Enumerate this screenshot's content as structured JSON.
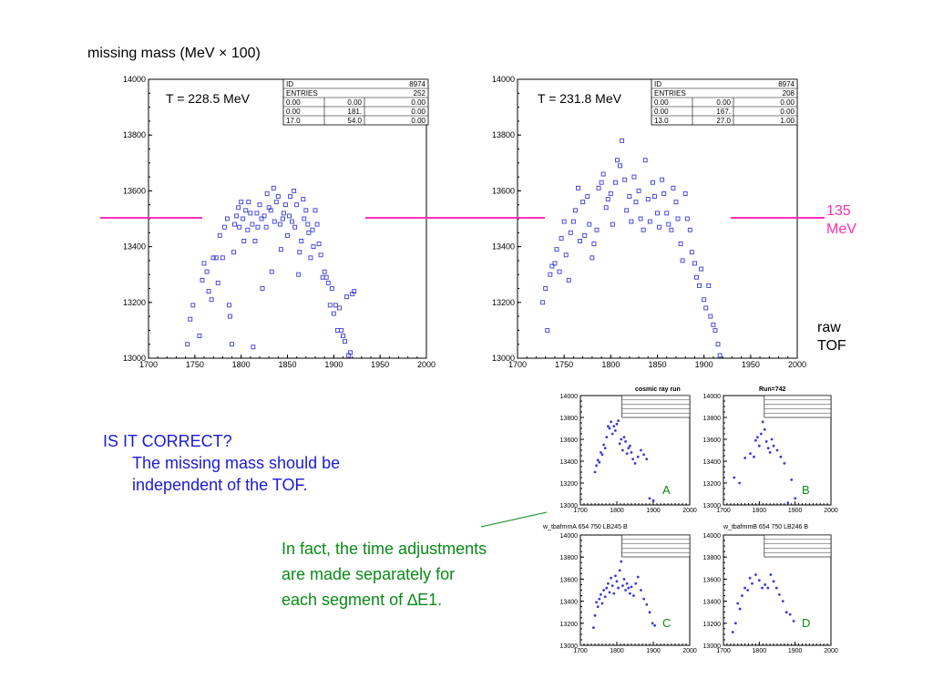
{
  "heading": "missing mass (MeV × 100)",
  "colors": {
    "points": "#3a3ad8",
    "line135": "#ff2fb4",
    "question": "#1a1ad6",
    "note": "#0a8a16",
    "pointer": "#0a8a16"
  },
  "labels": {
    "mev135": [
      "135",
      "MeV"
    ],
    "raw_tof": [
      "raw",
      "TOF"
    ],
    "question_title": "IS  IT  CORRECT?",
    "question_lines": [
      "The missing mass should be",
      "independent of the TOF."
    ],
    "note_lines": [
      "In fact, the time adjustments",
      "are made separately for",
      "each segment of ∆E1."
    ]
  },
  "chart_data": [
    {
      "type": "scatter",
      "annotation": "T = 228.5 MeV",
      "xlim": [
        1700,
        2000
      ],
      "ylim": [
        13000,
        14000
      ],
      "xticks": [
        "1700",
        "1750",
        "1800",
        "1850",
        "1900",
        "1950",
        "2000"
      ],
      "yticks": [
        "13000",
        "13200",
        "13400",
        "13600",
        "13800",
        "14000"
      ],
      "stats": [
        [
          "ID",
          "",
          "8974"
        ],
        [
          "ENTRIES",
          "",
          "252"
        ],
        [
          "0.00",
          "0.00",
          "0.00"
        ],
        [
          "0.00",
          "181.",
          "0.00"
        ],
        [
          "17.0",
          "54.0",
          "0.00"
        ]
      ],
      "reference_line_y": 13500,
      "points": [
        [
          1742,
          13050
        ],
        [
          1745,
          13140
        ],
        [
          1748,
          13190
        ],
        [
          1755,
          13080
        ],
        [
          1758,
          13280
        ],
        [
          1760,
          13340
        ],
        [
          1763,
          13310
        ],
        [
          1765,
          13240
        ],
        [
          1768,
          13210
        ],
        [
          1770,
          13360
        ],
        [
          1773,
          13360
        ],
        [
          1775,
          13270
        ],
        [
          1777,
          13440
        ],
        [
          1780,
          13360
        ],
        [
          1782,
          13470
        ],
        [
          1785,
          13500
        ],
        [
          1787,
          13190
        ],
        [
          1788,
          13150
        ],
        [
          1790,
          13050
        ],
        [
          1792,
          13380
        ],
        [
          1793,
          13480
        ],
        [
          1795,
          13510
        ],
        [
          1797,
          13540
        ],
        [
          1798,
          13470
        ],
        [
          1800,
          13560
        ],
        [
          1802,
          13500
        ],
        [
          1803,
          13420
        ],
        [
          1805,
          13530
        ],
        [
          1807,
          13460
        ],
        [
          1808,
          13560
        ],
        [
          1810,
          13520
        ],
        [
          1812,
          13480
        ],
        [
          1813,
          13040
        ],
        [
          1815,
          13420
        ],
        [
          1817,
          13520
        ],
        [
          1818,
          13470
        ],
        [
          1820,
          13550
        ],
        [
          1822,
          13500
        ],
        [
          1823,
          13250
        ],
        [
          1825,
          13510
        ],
        [
          1827,
          13470
        ],
        [
          1828,
          13590
        ],
        [
          1830,
          13540
        ],
        [
          1832,
          13530
        ],
        [
          1833,
          13310
        ],
        [
          1835,
          13610
        ],
        [
          1836,
          13490
        ],
        [
          1838,
          13560
        ],
        [
          1840,
          13580
        ],
        [
          1842,
          13480
        ],
        [
          1843,
          13390
        ],
        [
          1845,
          13500
        ],
        [
          1846,
          13520
        ],
        [
          1848,
          13550
        ],
        [
          1850,
          13440
        ],
        [
          1852,
          13510
        ],
        [
          1853,
          13580
        ],
        [
          1855,
          13490
        ],
        [
          1857,
          13600
        ],
        [
          1858,
          13470
        ],
        [
          1860,
          13550
        ],
        [
          1862,
          13300
        ],
        [
          1863,
          13380
        ],
        [
          1865,
          13420
        ],
        [
          1867,
          13570
        ],
        [
          1868,
          13500
        ],
        [
          1870,
          13530
        ],
        [
          1872,
          13480
        ],
        [
          1873,
          13450
        ],
        [
          1875,
          13360
        ],
        [
          1877,
          13460
        ],
        [
          1878,
          13400
        ],
        [
          1880,
          13530
        ],
        [
          1882,
          13480
        ],
        [
          1884,
          13410
        ],
        [
          1886,
          13370
        ],
        [
          1888,
          13290
        ],
        [
          1890,
          13310
        ],
        [
          1892,
          13290
        ],
        [
          1894,
          13270
        ],
        [
          1896,
          13190
        ],
        [
          1898,
          13250
        ],
        [
          1900,
          13160
        ],
        [
          1902,
          13190
        ],
        [
          1904,
          13100
        ],
        [
          1906,
          13180
        ],
        [
          1908,
          13100
        ],
        [
          1910,
          13080
        ],
        [
          1912,
          13060
        ],
        [
          1914,
          13220
        ],
        [
          1916,
          13010
        ],
        [
          1918,
          13020
        ],
        [
          1920,
          13230
        ],
        [
          1922,
          13240
        ]
      ]
    },
    {
      "type": "scatter",
      "annotation": "T = 231.8 MeV",
      "xlim": [
        1700,
        2000
      ],
      "ylim": [
        13000,
        14000
      ],
      "xticks": [
        "1700",
        "1750",
        "1800",
        "1850",
        "1900",
        "1950",
        "2000"
      ],
      "yticks": [
        "13000",
        "13200",
        "13400",
        "13600",
        "13800",
        "14000"
      ],
      "stats": [
        [
          "ID",
          "",
          "8974"
        ],
        [
          "ENTRIES",
          "",
          "208"
        ],
        [
          "0.00",
          "0.00",
          "0.00"
        ],
        [
          "0.00",
          "167.",
          "0.00"
        ],
        [
          "13.0",
          "27.0",
          "1.00"
        ]
      ],
      "reference_line_y": 13500,
      "points": [
        [
          1727,
          13200
        ],
        [
          1730,
          13250
        ],
        [
          1732,
          13100
        ],
        [
          1735,
          13300
        ],
        [
          1737,
          13330
        ],
        [
          1740,
          13340
        ],
        [
          1742,
          13390
        ],
        [
          1745,
          13310
        ],
        [
          1747,
          13430
        ],
        [
          1750,
          13490
        ],
        [
          1752,
          13370
        ],
        [
          1755,
          13280
        ],
        [
          1757,
          13450
        ],
        [
          1760,
          13490
        ],
        [
          1762,
          13530
        ],
        [
          1765,
          13610
        ],
        [
          1767,
          13420
        ],
        [
          1770,
          13560
        ],
        [
          1772,
          13440
        ],
        [
          1775,
          13580
        ],
        [
          1777,
          13480
        ],
        [
          1780,
          13360
        ],
        [
          1782,
          13410
        ],
        [
          1785,
          13460
        ],
        [
          1787,
          13610
        ],
        [
          1790,
          13630
        ],
        [
          1792,
          13660
        ],
        [
          1795,
          13540
        ],
        [
          1797,
          13570
        ],
        [
          1800,
          13590
        ],
        [
          1802,
          13480
        ],
        [
          1805,
          13630
        ],
        [
          1807,
          13710
        ],
        [
          1810,
          13690
        ],
        [
          1812,
          13780
        ],
        [
          1815,
          13640
        ],
        [
          1817,
          13530
        ],
        [
          1820,
          13580
        ],
        [
          1822,
          13490
        ],
        [
          1825,
          13650
        ],
        [
          1827,
          13560
        ],
        [
          1830,
          13600
        ],
        [
          1832,
          13500
        ],
        [
          1835,
          13460
        ],
        [
          1837,
          13710
        ],
        [
          1840,
          13570
        ],
        [
          1842,
          13490
        ],
        [
          1845,
          13630
        ],
        [
          1847,
          13580
        ],
        [
          1850,
          13520
        ],
        [
          1852,
          13470
        ],
        [
          1855,
          13640
        ],
        [
          1857,
          13590
        ],
        [
          1860,
          13520
        ],
        [
          1862,
          13480
        ],
        [
          1865,
          13460
        ],
        [
          1867,
          13610
        ],
        [
          1870,
          13560
        ],
        [
          1872,
          13500
        ],
        [
          1875,
          13410
        ],
        [
          1877,
          13350
        ],
        [
          1880,
          13590
        ],
        [
          1882,
          13500
        ],
        [
          1885,
          13460
        ],
        [
          1887,
          13380
        ],
        [
          1890,
          13340
        ],
        [
          1892,
          13290
        ],
        [
          1895,
          13260
        ],
        [
          1897,
          13320
        ],
        [
          1900,
          13210
        ],
        [
          1902,
          13180
        ],
        [
          1905,
          13260
        ],
        [
          1907,
          13150
        ],
        [
          1910,
          13120
        ],
        [
          1912,
          13100
        ],
        [
          1915,
          13050
        ],
        [
          1917,
          13010
        ]
      ]
    },
    {
      "type": "scatter",
      "annotation": "A",
      "header": "cosmic ray run",
      "xlim": [
        1700,
        2000
      ],
      "ylim": [
        13000,
        14000
      ],
      "xticks": [
        "1700",
        "1800",
        "1900",
        "2000"
      ],
      "yticks": [
        "13000",
        "13200",
        "13400",
        "13600",
        "13800",
        "14000"
      ],
      "points": [
        [
          1740,
          13300
        ],
        [
          1744,
          13360
        ],
        [
          1748,
          13410
        ],
        [
          1752,
          13390
        ],
        [
          1756,
          13480
        ],
        [
          1760,
          13460
        ],
        [
          1764,
          13550
        ],
        [
          1768,
          13520
        ],
        [
          1772,
          13620
        ],
        [
          1776,
          13720
        ],
        [
          1780,
          13700
        ],
        [
          1784,
          13760
        ],
        [
          1788,
          13650
        ],
        [
          1792,
          13720
        ],
        [
          1796,
          13680
        ],
        [
          1800,
          13740
        ],
        [
          1804,
          13770
        ],
        [
          1808,
          13560
        ],
        [
          1812,
          13600
        ],
        [
          1816,
          13500
        ],
        [
          1820,
          13620
        ],
        [
          1824,
          13580
        ],
        [
          1828,
          13470
        ],
        [
          1832,
          13520
        ],
        [
          1836,
          13540
        ],
        [
          1840,
          13480
        ],
        [
          1844,
          13420
        ],
        [
          1850,
          13380
        ],
        [
          1858,
          13440
        ],
        [
          1866,
          13500
        ],
        [
          1874,
          13460
        ],
        [
          1882,
          13420
        ],
        [
          1890,
          13060
        ],
        [
          1900,
          13040
        ]
      ]
    },
    {
      "type": "scatter",
      "annotation": "B",
      "header": "Run=742",
      "xlim": [
        1700,
        2000
      ],
      "ylim": [
        13000,
        14000
      ],
      "xticks": [
        "1700",
        "1800",
        "1900",
        "2000"
      ],
      "yticks": [
        "13000",
        "13200",
        "13400",
        "13600",
        "13800",
        "14000"
      ],
      "points": [
        [
          1730,
          13250
        ],
        [
          1745,
          13200
        ],
        [
          1760,
          13430
        ],
        [
          1775,
          13470
        ],
        [
          1785,
          13440
        ],
        [
          1790,
          13590
        ],
        [
          1795,
          13620
        ],
        [
          1800,
          13540
        ],
        [
          1805,
          13650
        ],
        [
          1810,
          13760
        ],
        [
          1815,
          13690
        ],
        [
          1820,
          13580
        ],
        [
          1825,
          13520
        ],
        [
          1830,
          13480
        ],
        [
          1835,
          13600
        ],
        [
          1840,
          13540
        ],
        [
          1850,
          13500
        ],
        [
          1860,
          13440
        ],
        [
          1870,
          13380
        ],
        [
          1880,
          13020
        ],
        [
          1890,
          13230
        ],
        [
          1900,
          13060
        ]
      ]
    },
    {
      "type": "scatter",
      "annotation": "C",
      "header": "w_tbafmmA          654 750 LB245  B",
      "xlim": [
        1700,
        2000
      ],
      "ylim": [
        13000,
        14000
      ],
      "xticks": [
        "1700",
        "1800",
        "1900",
        "2000"
      ],
      "yticks": [
        "13000",
        "13200",
        "13400",
        "13600",
        "13800",
        "14000"
      ],
      "points": [
        [
          1736,
          13160
        ],
        [
          1740,
          13270
        ],
        [
          1744,
          13390
        ],
        [
          1748,
          13350
        ],
        [
          1752,
          13420
        ],
        [
          1756,
          13460
        ],
        [
          1760,
          13380
        ],
        [
          1764,
          13500
        ],
        [
          1768,
          13440
        ],
        [
          1772,
          13520
        ],
        [
          1776,
          13560
        ],
        [
          1780,
          13480
        ],
        [
          1784,
          13610
        ],
        [
          1788,
          13540
        ],
        [
          1792,
          13470
        ],
        [
          1796,
          13630
        ],
        [
          1800,
          13580
        ],
        [
          1804,
          13520
        ],
        [
          1808,
          13680
        ],
        [
          1812,
          13760
        ],
        [
          1816,
          13540
        ],
        [
          1820,
          13600
        ],
        [
          1824,
          13500
        ],
        [
          1828,
          13560
        ],
        [
          1832,
          13520
        ],
        [
          1836,
          13470
        ],
        [
          1840,
          13530
        ],
        [
          1846,
          13450
        ],
        [
          1852,
          13560
        ],
        [
          1858,
          13620
        ],
        [
          1866,
          13500
        ],
        [
          1874,
          13420
        ],
        [
          1882,
          13370
        ],
        [
          1890,
          13300
        ],
        [
          1898,
          13200
        ],
        [
          1904,
          13180
        ]
      ]
    },
    {
      "type": "scatter",
      "annotation": "D",
      "header": "w_tbafmmB          654 750 LB246  B",
      "xlim": [
        1700,
        2000
      ],
      "ylim": [
        13000,
        14000
      ],
      "xticks": [
        "1700",
        "1800",
        "1900",
        "2000"
      ],
      "yticks": [
        "13000",
        "13200",
        "13400",
        "13600",
        "13800",
        "14000"
      ],
      "points": [
        [
          1726,
          13120
        ],
        [
          1734,
          13200
        ],
        [
          1740,
          13380
        ],
        [
          1746,
          13330
        ],
        [
          1752,
          13450
        ],
        [
          1760,
          13520
        ],
        [
          1768,
          13500
        ],
        [
          1774,
          13610
        ],
        [
          1780,
          13560
        ],
        [
          1790,
          13640
        ],
        [
          1800,
          13590
        ],
        [
          1808,
          13520
        ],
        [
          1816,
          13550
        ],
        [
          1824,
          13520
        ],
        [
          1832,
          13640
        ],
        [
          1840,
          13580
        ],
        [
          1848,
          13520
        ],
        [
          1856,
          13460
        ],
        [
          1866,
          13400
        ],
        [
          1876,
          13300
        ],
        [
          1886,
          13280
        ],
        [
          1896,
          13220
        ]
      ]
    }
  ]
}
